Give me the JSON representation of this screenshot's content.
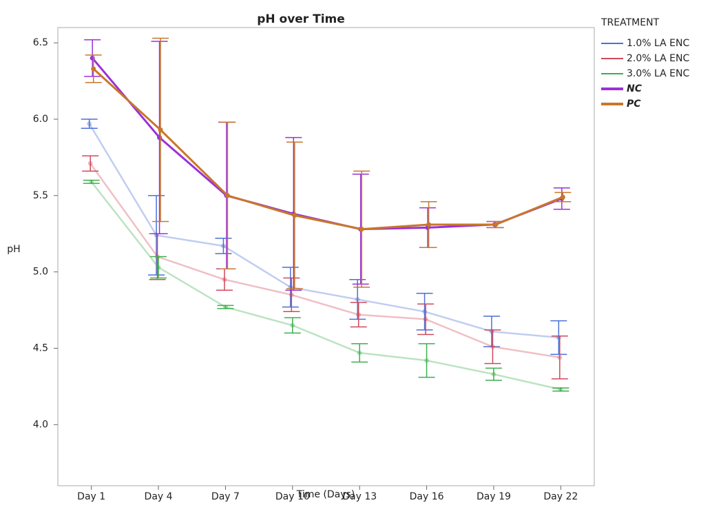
{
  "chart_data": {
    "type": "line",
    "title": "pH over Time",
    "x_label": "Time (Days)",
    "y_label": "pH",
    "legend_title": "TREATMENT",
    "legend_position": "right",
    "categories": [
      "Day 1",
      "Day 4",
      "Day 7",
      "Day 10",
      "Day 13",
      "Day 16",
      "Day 19",
      "Day 22"
    ],
    "ylim": [
      3.6,
      6.6
    ],
    "yticks": [
      {
        "value": 4,
        "label": "4.0"
      },
      {
        "value": 4.5,
        "label": "4.5"
      },
      {
        "value": 5,
        "label": "5.0"
      },
      {
        "value": 5.5,
        "label": "5.5"
      },
      {
        "value": 6,
        "label": "6.0"
      },
      {
        "value": 6.5,
        "label": "6.5"
      }
    ],
    "series": [
      {
        "name": "1.0% LA ENC",
        "color": "#4a6fd8",
        "bold": false,
        "values": [
          5.97,
          5.24,
          5.17,
          4.9,
          4.82,
          4.74,
          4.61,
          4.57
        ],
        "errors": [
          0.03,
          0.26,
          0.05,
          0.13,
          0.13,
          0.12,
          0.1,
          0.11
        ]
      },
      {
        "name": "2.0% LA ENC",
        "color": "#d0485a",
        "bold": false,
        "values": [
          5.71,
          5.1,
          4.95,
          4.85,
          4.72,
          4.69,
          4.51,
          4.44
        ],
        "errors": [
          0.05,
          0.15,
          0.07,
          0.11,
          0.08,
          0.1,
          0.11,
          0.14
        ]
      },
      {
        "name": "3.0% LA ENC",
        "color": "#3cae4e",
        "bold": false,
        "values": [
          5.59,
          5.03,
          4.77,
          4.65,
          4.47,
          4.42,
          4.33,
          4.23
        ],
        "errors": [
          0.01,
          0.07,
          0.01,
          0.05,
          0.06,
          0.11,
          0.04,
          0.01
        ]
      },
      {
        "name": "NC",
        "color": "#9b30d9",
        "bold": true,
        "values": [
          6.4,
          5.88,
          5.5,
          5.38,
          5.28,
          5.29,
          5.31,
          5.48
        ],
        "errors": [
          0.12,
          0.63,
          0.48,
          0.5,
          0.36,
          0.13,
          0.02,
          0.07
        ]
      },
      {
        "name": "PC",
        "color": "#c8772a",
        "bold": true,
        "values": [
          6.33,
          5.93,
          5.5,
          5.37,
          5.28,
          5.31,
          5.31,
          5.49
        ],
        "errors": [
          0.09,
          0.6,
          0.48,
          0.48,
          0.38,
          0.15,
          0.02,
          0.03
        ]
      }
    ]
  }
}
